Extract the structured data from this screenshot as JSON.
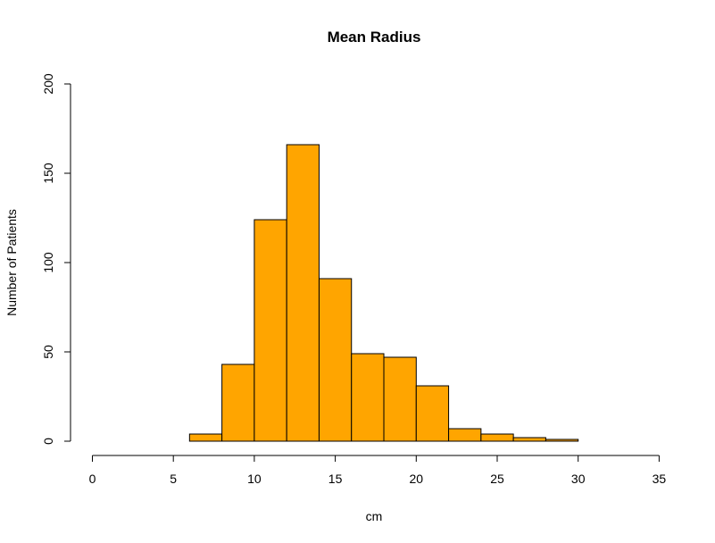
{
  "chart_data": {
    "type": "bar",
    "title": "Mean Radius",
    "xlabel": "cm",
    "ylabel": "Number of Patients",
    "xlim": [
      0,
      35
    ],
    "ylim": [
      0,
      200
    ],
    "x_ticks": [
      0,
      5,
      10,
      15,
      20,
      25,
      30,
      35
    ],
    "y_ticks": [
      0,
      50,
      100,
      150,
      200
    ],
    "bin_edges": [
      6,
      8,
      10,
      12,
      14,
      16,
      18,
      20,
      22,
      24,
      26,
      28,
      30
    ],
    "values": [
      4,
      43,
      124,
      166,
      91,
      49,
      47,
      31,
      7,
      4,
      2,
      1
    ],
    "bar_color": "#FFA500",
    "grid": false,
    "legend": "none"
  }
}
